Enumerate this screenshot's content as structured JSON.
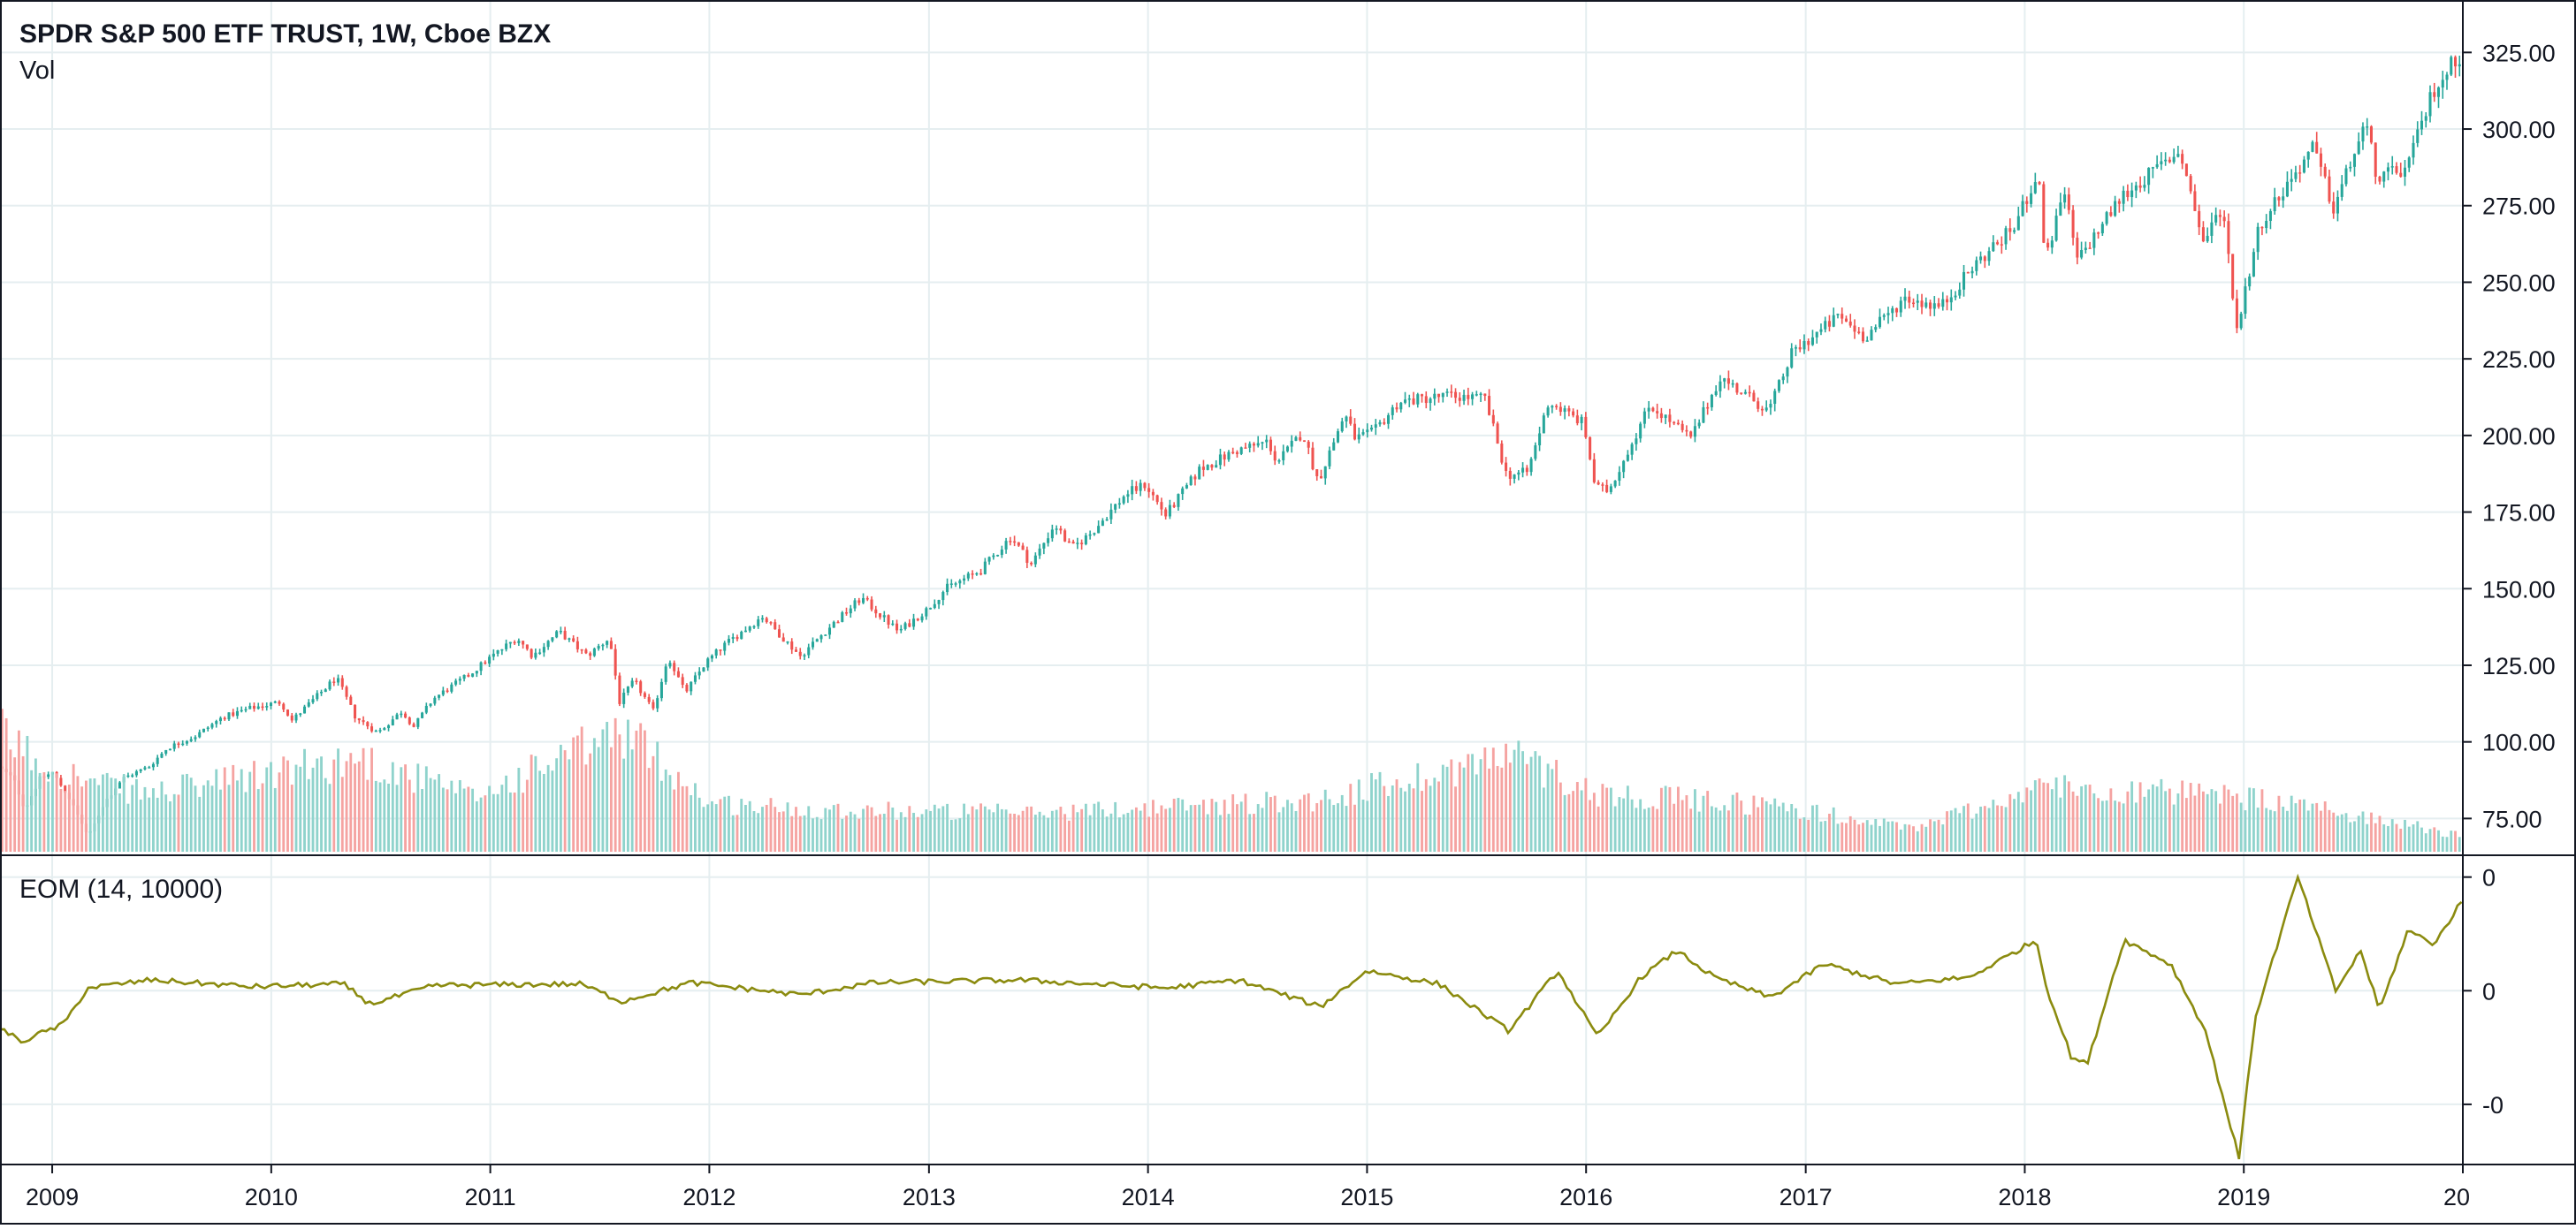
{
  "header": {
    "title": "SPDR S&P 500 ETF TRUST, 1W, Cboe BZX",
    "volume_label": "Vol",
    "indicator_label": "EOM (14, 10000)"
  },
  "colors": {
    "up": "#26a69a",
    "down": "#ef5350",
    "volume_up": "#8fd3cc",
    "volume_down": "#f5a3a1",
    "eom_line": "#8b8b0f",
    "grid": "#e5eef0",
    "axis": "#131722",
    "background": "#ffffff"
  },
  "chart_data": [
    {
      "type": "candlestick",
      "x_range": [
        "2008-10-06",
        "2020-01-01"
      ],
      "y_range": [
        63,
        330
      ],
      "y_ticks": [
        "75.00",
        "100.00",
        "125.00",
        "150.00",
        "175.00",
        "200.00",
        "225.00",
        "250.00",
        "275.00",
        "300.00",
        "325.00"
      ],
      "x_ticks": [
        {
          "date": "2009-01-01",
          "label": "2009"
        },
        {
          "date": "2010-01-01",
          "label": "2010"
        },
        {
          "date": "2011-01-01",
          "label": "2011"
        },
        {
          "date": "2012-01-01",
          "label": "2012"
        },
        {
          "date": "2013-01-01",
          "label": "2013"
        },
        {
          "date": "2014-01-01",
          "label": "2014"
        },
        {
          "date": "2015-01-01",
          "label": "2015"
        },
        {
          "date": "2016-01-01",
          "label": "2016"
        },
        {
          "date": "2017-01-01",
          "label": "2017"
        },
        {
          "date": "2018-01-01",
          "label": "2018"
        },
        {
          "date": "2019-01-01",
          "label": "2019"
        },
        {
          "date": "2020-01-01",
          "label": "20"
        }
      ],
      "series": [
        {
          "name": "Close",
          "points": [
            [
              "2008-10-06",
              92
            ],
            [
              "2008-11-01",
              88
            ],
            [
              "2008-11-20",
              78
            ],
            [
              "2008-12-15",
              88
            ],
            [
              "2009-01-05",
              90
            ],
            [
              "2009-02-01",
              82
            ],
            [
              "2009-03-06",
              69
            ],
            [
              "2009-04-01",
              80
            ],
            [
              "2009-05-01",
              88
            ],
            [
              "2009-06-15",
              92
            ],
            [
              "2009-07-15",
              98
            ],
            [
              "2009-09-01",
              102
            ],
            [
              "2009-10-15",
              108
            ],
            [
              "2009-12-01",
              111
            ],
            [
              "2010-01-20",
              113
            ],
            [
              "2010-02-08",
              107
            ],
            [
              "2010-04-23",
              121
            ],
            [
              "2010-05-25",
              108
            ],
            [
              "2010-07-01",
              103
            ],
            [
              "2010-08-10",
              110
            ],
            [
              "2010-08-30",
              105
            ],
            [
              "2010-10-01",
              114
            ],
            [
              "2010-12-01",
              122
            ],
            [
              "2011-01-01",
              127
            ],
            [
              "2011-02-18",
              134
            ],
            [
              "2011-03-16",
              128
            ],
            [
              "2011-04-29",
              136
            ],
            [
              "2011-06-15",
              128
            ],
            [
              "2011-07-22",
              134
            ],
            [
              "2011-08-08",
              113
            ],
            [
              "2011-09-01",
              120
            ],
            [
              "2011-10-03",
              110
            ],
            [
              "2011-10-28",
              128
            ],
            [
              "2011-11-25",
              116
            ],
            [
              "2011-12-30",
              126
            ],
            [
              "2012-02-01",
              132
            ],
            [
              "2012-04-02",
              141
            ],
            [
              "2012-06-04",
              128
            ],
            [
              "2012-07-15",
              136
            ],
            [
              "2012-09-14",
              147
            ],
            [
              "2012-11-15",
              136
            ],
            [
              "2012-12-31",
              143
            ],
            [
              "2013-02-01",
              150
            ],
            [
              "2013-04-01",
              156
            ],
            [
              "2013-05-21",
              167
            ],
            [
              "2013-06-24",
              158
            ],
            [
              "2013-08-02",
              171
            ],
            [
              "2013-08-30",
              163
            ],
            [
              "2013-10-01",
              168
            ],
            [
              "2013-11-29",
              181
            ],
            [
              "2013-12-31",
              184
            ],
            [
              "2014-02-03",
              174
            ],
            [
              "2014-04-01",
              189
            ],
            [
              "2014-06-01",
              195
            ],
            [
              "2014-07-24",
              198
            ],
            [
              "2014-08-07",
              191
            ],
            [
              "2014-09-19",
              201
            ],
            [
              "2014-10-15",
              185
            ],
            [
              "2014-11-28",
              207
            ],
            [
              "2014-12-16",
              199
            ],
            [
              "2015-01-15",
              201
            ],
            [
              "2015-02-27",
              211
            ],
            [
              "2015-05-20",
              213
            ],
            [
              "2015-07-20",
              212
            ],
            [
              "2015-08-25",
              187
            ],
            [
              "2015-09-29",
              188
            ],
            [
              "2015-11-03",
              211
            ],
            [
              "2015-12-31",
              204
            ],
            [
              "2016-01-20",
              183
            ],
            [
              "2016-02-11",
              182
            ],
            [
              "2016-04-20",
              210
            ],
            [
              "2016-06-27",
              199
            ],
            [
              "2016-08-15",
              219
            ],
            [
              "2016-11-04",
              208
            ],
            [
              "2016-12-13",
              227
            ],
            [
              "2017-03-01",
              239
            ],
            [
              "2017-04-13",
              232
            ],
            [
              "2017-06-19",
              245
            ],
            [
              "2017-08-18",
              242
            ],
            [
              "2017-10-15",
              256
            ],
            [
              "2017-12-18",
              268
            ],
            [
              "2018-01-26",
              286
            ],
            [
              "2018-02-08",
              258
            ],
            [
              "2018-03-12",
              279
            ],
            [
              "2018-04-02",
              257
            ],
            [
              "2018-06-15",
              278
            ],
            [
              "2018-09-20",
              293
            ],
            [
              "2018-10-29",
              263
            ],
            [
              "2018-11-30",
              275
            ],
            [
              "2018-12-24",
              235
            ],
            [
              "2019-01-31",
              269
            ],
            [
              "2019-04-30",
              294
            ],
            [
              "2019-06-03",
              274
            ],
            [
              "2019-07-26",
              302
            ],
            [
              "2019-08-15",
              284
            ],
            [
              "2019-10-03",
              287
            ],
            [
              "2019-11-15",
              312
            ],
            [
              "2019-12-27",
              324
            ]
          ]
        },
        {
          "name": "Volume",
          "relative_levels": [
            [
              "2008-10-06",
              0.6
            ],
            [
              "2008-12-15",
              0.45
            ],
            [
              "2009-03-06",
              0.35
            ],
            [
              "2009-06-15",
              0.3
            ],
            [
              "2010-05-25",
              0.48
            ],
            [
              "2010-12-01",
              0.28
            ],
            [
              "2011-08-08",
              0.62
            ],
            [
              "2011-12-30",
              0.25
            ],
            [
              "2012-06-04",
              0.22
            ],
            [
              "2013-06-24",
              0.2
            ],
            [
              "2014-10-15",
              0.27
            ],
            [
              "2015-08-25",
              0.5
            ],
            [
              "2016-01-20",
              0.3
            ],
            [
              "2016-11-04",
              0.24
            ],
            [
              "2017-06-19",
              0.12
            ],
            [
              "2018-02-08",
              0.34
            ],
            [
              "2018-12-24",
              0.28
            ],
            [
              "2019-08-15",
              0.17
            ],
            [
              "2019-12-27",
              0.08
            ]
          ]
        }
      ]
    },
    {
      "type": "line",
      "x_range": [
        "2008-10-06",
        "2020-01-01"
      ],
      "y_range": [
        -1.3,
        1.0
      ],
      "y_ticks": [
        {
          "value": 0.85,
          "label": "0"
        },
        {
          "value": 0,
          "label": "0"
        },
        {
          "value": -0.85,
          "label": "-0"
        }
      ],
      "series": [
        {
          "name": "EOM (14, 10000)",
          "points": [
            [
              "2008-10-06",
              -0.28
            ],
            [
              "2008-11-10",
              -0.38
            ],
            [
              "2009-01-20",
              -0.25
            ],
            [
              "2009-03-01",
              0.02
            ],
            [
              "2009-06-15",
              0.08
            ],
            [
              "2009-12-01",
              0.03
            ],
            [
              "2010-05-01",
              0.05
            ],
            [
              "2010-06-15",
              -0.1
            ],
            [
              "2010-10-01",
              0.04
            ],
            [
              "2011-06-01",
              0.05
            ],
            [
              "2011-08-08",
              -0.08
            ],
            [
              "2011-12-01",
              0.06
            ],
            [
              "2012-06-01",
              -0.03
            ],
            [
              "2012-10-01",
              0.06
            ],
            [
              "2013-06-01",
              0.08
            ],
            [
              "2014-02-01",
              0.02
            ],
            [
              "2014-06-01",
              0.08
            ],
            [
              "2014-10-15",
              -0.12
            ],
            [
              "2015-01-01",
              0.15
            ],
            [
              "2015-05-01",
              0.05
            ],
            [
              "2015-08-25",
              -0.3
            ],
            [
              "2015-10-01",
              -0.1
            ],
            [
              "2015-11-15",
              0.15
            ],
            [
              "2016-01-20",
              -0.35
            ],
            [
              "2016-04-01",
              0.1
            ],
            [
              "2016-06-01",
              0.3
            ],
            [
              "2016-08-01",
              0.1
            ],
            [
              "2016-11-04",
              -0.05
            ],
            [
              "2017-02-01",
              0.2
            ],
            [
              "2017-06-01",
              0.05
            ],
            [
              "2017-10-01",
              0.1
            ],
            [
              "2018-01-20",
              0.38
            ],
            [
              "2018-02-08",
              0.0
            ],
            [
              "2018-03-20",
              -0.5
            ],
            [
              "2018-04-15",
              -0.55
            ],
            [
              "2018-06-15",
              0.38
            ],
            [
              "2018-09-01",
              0.2
            ],
            [
              "2018-10-29",
              -0.3
            ],
            [
              "2018-12-24",
              -1.25
            ],
            [
              "2019-01-20",
              -0.2
            ],
            [
              "2019-04-01",
              0.85
            ],
            [
              "2019-06-03",
              0.0
            ],
            [
              "2019-07-15",
              0.3
            ],
            [
              "2019-08-15",
              -0.15
            ],
            [
              "2019-10-01",
              0.45
            ],
            [
              "2019-11-15",
              0.35
            ],
            [
              "2019-12-27",
              0.65
            ]
          ]
        }
      ]
    }
  ]
}
